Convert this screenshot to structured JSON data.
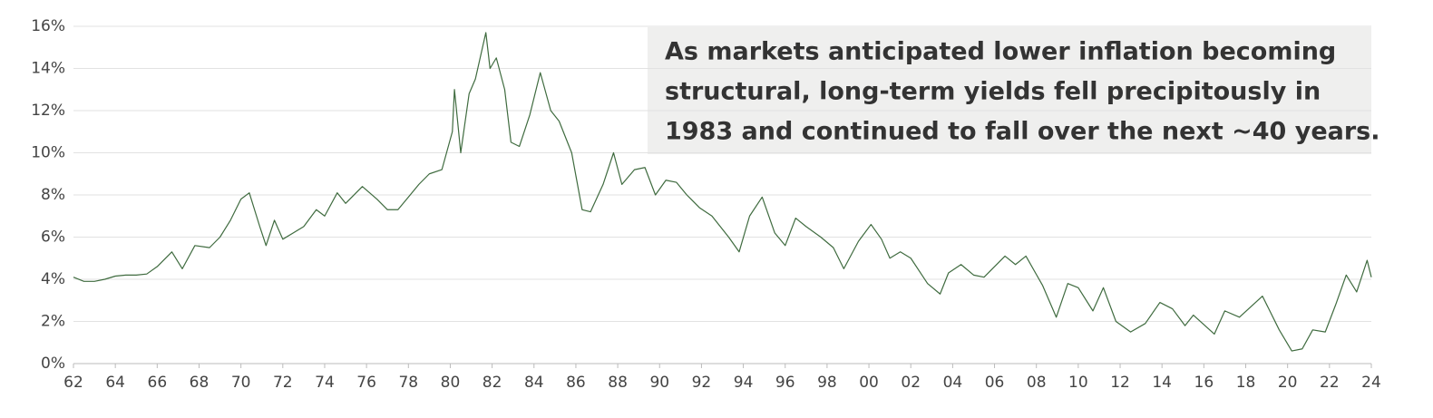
{
  "chart_data": {
    "type": "line",
    "annotation": [
      "As markets anticipated lower inflation becoming",
      "structural, long-term yields fell precipitously in",
      "1983  and continued to fall over the next ~40 years."
    ],
    "x": [
      1962.0,
      1962.5,
      1963.0,
      1963.5,
      1964.0,
      1964.5,
      1965.0,
      1965.5,
      1966.0,
      1966.7,
      1967.2,
      1967.8,
      1968.5,
      1969.0,
      1969.5,
      1970.0,
      1970.4,
      1970.9,
      1971.2,
      1971.6,
      1972.0,
      1972.5,
      1973.0,
      1973.6,
      1974.0,
      1974.6,
      1975.0,
      1975.8,
      1976.5,
      1977.0,
      1977.5,
      1978.0,
      1978.5,
      1979.0,
      1979.6,
      1980.1,
      1980.2,
      1980.5,
      1980.9,
      1981.2,
      1981.7,
      1981.9,
      1982.2,
      1982.6,
      1982.9,
      1983.3,
      1983.8,
      1984.3,
      1984.8,
      1985.2,
      1985.8,
      1986.3,
      1986.7,
      1987.3,
      1987.8,
      1988.2,
      1988.8,
      1989.3,
      1989.8,
      1990.3,
      1990.8,
      1991.3,
      1991.9,
      1992.5,
      1993.3,
      1993.8,
      1994.3,
      1994.9,
      1995.5,
      1996.0,
      1996.5,
      1997.0,
      1997.7,
      1998.3,
      1998.8,
      1999.5,
      2000.1,
      2000.6,
      2001.0,
      2001.5,
      2002.0,
      2002.8,
      2003.4,
      2003.8,
      2004.4,
      2005.0,
      2005.5,
      2006.5,
      2007.0,
      2007.5,
      2008.3,
      2008.95,
      2009.5,
      2010.0,
      2010.7,
      2011.2,
      2011.8,
      2012.5,
      2013.2,
      2013.9,
      2014.5,
      2015.1,
      2015.5,
      2016.5,
      2017.0,
      2017.7,
      2018.8,
      2019.6,
      2020.2,
      2020.7,
      2021.2,
      2021.8,
      2022.3,
      2022.8,
      2023.3,
      2023.8,
      2024.0
    ],
    "series": [
      {
        "color": "#3f6b3f",
        "values": [
          4.1,
          3.9,
          3.9,
          4.0,
          4.15,
          4.2,
          4.2,
          4.25,
          4.6,
          5.3,
          4.5,
          5.6,
          5.5,
          6.0,
          6.8,
          7.8,
          8.1,
          6.5,
          5.6,
          6.8,
          5.9,
          6.2,
          6.5,
          7.3,
          7.0,
          8.1,
          7.6,
          8.4,
          7.8,
          7.3,
          7.3,
          7.9,
          8.5,
          9.0,
          9.2,
          11.0,
          13.0,
          10.0,
          12.8,
          13.5,
          15.7,
          14.0,
          14.5,
          13.0,
          10.5,
          10.3,
          11.8,
          13.8,
          12.0,
          11.5,
          10.0,
          7.3,
          7.2,
          8.5,
          10.0,
          8.5,
          9.2,
          9.3,
          8.0,
          8.7,
          8.6,
          8.0,
          7.4,
          7.0,
          6.0,
          5.3,
          7.0,
          7.9,
          6.2,
          5.6,
          6.9,
          6.5,
          6.0,
          5.5,
          4.5,
          5.8,
          6.6,
          5.9,
          5.0,
          5.3,
          5.0,
          3.8,
          3.3,
          4.3,
          4.7,
          4.2,
          4.1,
          5.1,
          4.7,
          5.1,
          3.7,
          2.2,
          3.8,
          3.6,
          2.5,
          3.6,
          2.0,
          1.5,
          1.9,
          2.9,
          2.6,
          1.8,
          2.3,
          1.4,
          2.5,
          2.2,
          3.2,
          1.6,
          0.6,
          0.7,
          1.6,
          1.5,
          2.8,
          4.2,
          3.4,
          4.9,
          4.1
        ]
      }
    ],
    "xlim": [
      1962,
      2024
    ],
    "xticks": [
      {
        "value": 1962,
        "label": "62"
      },
      {
        "value": 1964,
        "label": "64"
      },
      {
        "value": 1966,
        "label": "66"
      },
      {
        "value": 1968,
        "label": "68"
      },
      {
        "value": 1970,
        "label": "70"
      },
      {
        "value": 1972,
        "label": "72"
      },
      {
        "value": 1974,
        "label": "74"
      },
      {
        "value": 1976,
        "label": "76"
      },
      {
        "value": 1978,
        "label": "78"
      },
      {
        "value": 1980,
        "label": "80"
      },
      {
        "value": 1982,
        "label": "82"
      },
      {
        "value": 1984,
        "label": "84"
      },
      {
        "value": 1986,
        "label": "86"
      },
      {
        "value": 1988,
        "label": "88"
      },
      {
        "value": 1990,
        "label": "90"
      },
      {
        "value": 1992,
        "label": "92"
      },
      {
        "value": 1994,
        "label": "94"
      },
      {
        "value": 1996,
        "label": "96"
      },
      {
        "value": 1998,
        "label": "98"
      },
      {
        "value": 2000,
        "label": "00"
      },
      {
        "value": 2002,
        "label": "02"
      },
      {
        "value": 2004,
        "label": "04"
      },
      {
        "value": 2006,
        "label": "06"
      },
      {
        "value": 2008,
        "label": "08"
      },
      {
        "value": 2010,
        "label": "10"
      },
      {
        "value": 2012,
        "label": "12"
      },
      {
        "value": 2014,
        "label": "14"
      },
      {
        "value": 2016,
        "label": "16"
      },
      {
        "value": 2018,
        "label": "18"
      },
      {
        "value": 2020,
        "label": "20"
      },
      {
        "value": 2022,
        "label": "22"
      },
      {
        "value": 2024,
        "label": "24"
      }
    ],
    "ylim": [
      0,
      16
    ],
    "yticks": [
      {
        "value": 0,
        "label": "0%"
      },
      {
        "value": 2,
        "label": "2%"
      },
      {
        "value": 4,
        "label": "4%"
      },
      {
        "value": 6,
        "label": "6%"
      },
      {
        "value": 8,
        "label": "8%"
      },
      {
        "value": 10,
        "label": "10%"
      },
      {
        "value": 12,
        "label": "12%"
      },
      {
        "value": 14,
        "label": "14%"
      },
      {
        "value": 16,
        "label": "16%"
      }
    ],
    "grid": true
  }
}
